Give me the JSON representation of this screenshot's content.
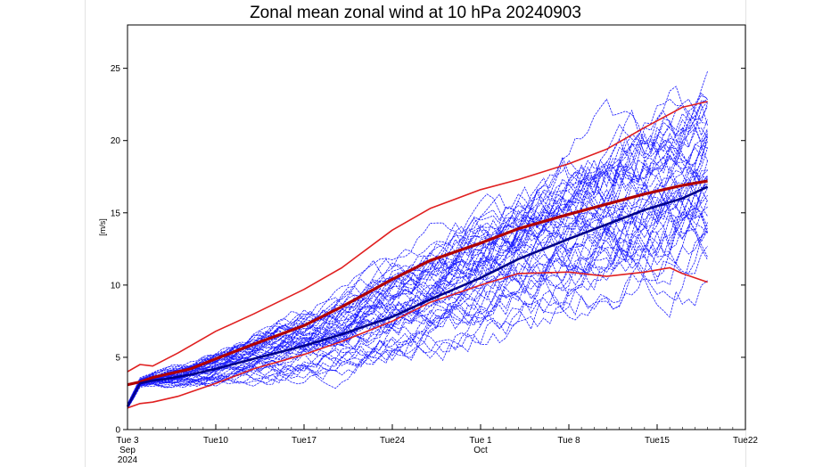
{
  "chart_data": {
    "type": "line",
    "title": "Zonal mean zonal wind at 10 hPa 20240903",
    "ylabel": "[m/s]",
    "ylim": [
      0,
      28
    ],
    "yticks": [
      0,
      5,
      10,
      15,
      20,
      25
    ],
    "xlim": [
      "2024-09-03",
      "2024-10-22"
    ],
    "xticks": [
      {
        "date": "2024-09-03",
        "label": "Tue 3",
        "sub1": "Sep",
        "sub2": "2024"
      },
      {
        "date": "2024-09-10",
        "label": "Tue10",
        "sub1": "",
        "sub2": ""
      },
      {
        "date": "2024-09-17",
        "label": "Tue17",
        "sub1": "",
        "sub2": ""
      },
      {
        "date": "2024-09-24",
        "label": "Tue24",
        "sub1": "",
        "sub2": ""
      },
      {
        "date": "2024-10-01",
        "label": "Tue 1",
        "sub1": "Oct",
        "sub2": ""
      },
      {
        "date": "2024-10-08",
        "label": "Tue 8",
        "sub1": "",
        "sub2": ""
      },
      {
        "date": "2024-10-15",
        "label": "Tue15",
        "sub1": "",
        "sub2": ""
      },
      {
        "date": "2024-10-22",
        "label": "Tue22",
        "sub1": "",
        "sub2": ""
      }
    ],
    "grid": false,
    "zero_line": true,
    "ensemble_members": 51,
    "colors": {
      "members": "#1a1aff",
      "climatology": "#e02020",
      "climatology_mean": "#b00000",
      "ensemble_mean": "#00008b"
    },
    "series": [
      {
        "role": "climatology_upper",
        "x": [
          "2024-09-03",
          "2024-09-04",
          "2024-09-05",
          "2024-09-07",
          "2024-09-10",
          "2024-09-13",
          "2024-09-17",
          "2024-09-20",
          "2024-09-24",
          "2024-09-27",
          "2024-10-01",
          "2024-10-04",
          "2024-10-08",
          "2024-10-11",
          "2024-10-14",
          "2024-10-17",
          "2024-10-19"
        ],
        "y": [
          4.0,
          4.5,
          4.4,
          5.3,
          6.8,
          8.0,
          9.7,
          11.2,
          13.8,
          15.3,
          16.6,
          17.3,
          18.4,
          19.4,
          20.9,
          22.3,
          22.7
        ]
      },
      {
        "role": "climatology_mean",
        "x": [
          "2024-09-03",
          "2024-09-04",
          "2024-09-05",
          "2024-09-08",
          "2024-09-10",
          "2024-09-13",
          "2024-09-17",
          "2024-09-20",
          "2024-09-24",
          "2024-09-27",
          "2024-10-01",
          "2024-10-04",
          "2024-10-08",
          "2024-10-11",
          "2024-10-14",
          "2024-10-17",
          "2024-10-19"
        ],
        "y": [
          3.1,
          3.3,
          3.6,
          4.2,
          4.9,
          5.9,
          7.2,
          8.5,
          10.4,
          11.7,
          12.9,
          13.9,
          14.9,
          15.6,
          16.3,
          16.9,
          17.2
        ]
      },
      {
        "role": "climatology_lower",
        "x": [
          "2024-09-03",
          "2024-09-04",
          "2024-09-05",
          "2024-09-07",
          "2024-09-10",
          "2024-09-13",
          "2024-09-17",
          "2024-09-20",
          "2024-09-24",
          "2024-09-27",
          "2024-10-01",
          "2024-10-04",
          "2024-10-08",
          "2024-10-11",
          "2024-10-14",
          "2024-10-16",
          "2024-10-17",
          "2024-10-19"
        ],
        "y": [
          1.5,
          1.8,
          1.9,
          2.3,
          3.2,
          4.2,
          5.2,
          6.1,
          7.5,
          8.8,
          10.0,
          10.8,
          10.9,
          10.6,
          10.9,
          11.2,
          10.8,
          10.2
        ]
      },
      {
        "role": "ensemble_mean",
        "x": [
          "2024-09-03",
          "2024-09-04",
          "2024-09-05",
          "2024-09-06",
          "2024-09-08",
          "2024-09-10",
          "2024-09-13",
          "2024-09-17",
          "2024-09-20",
          "2024-09-24",
          "2024-09-27",
          "2024-10-01",
          "2024-10-04",
          "2024-10-08",
          "2024-10-11",
          "2024-10-14",
          "2024-10-17",
          "2024-10-19"
        ],
        "y": [
          1.6,
          3.2,
          3.4,
          3.5,
          3.8,
          4.2,
          4.9,
          5.8,
          6.6,
          7.8,
          9.0,
          10.5,
          11.8,
          13.2,
          14.2,
          15.2,
          16.0,
          16.8
        ]
      }
    ]
  }
}
